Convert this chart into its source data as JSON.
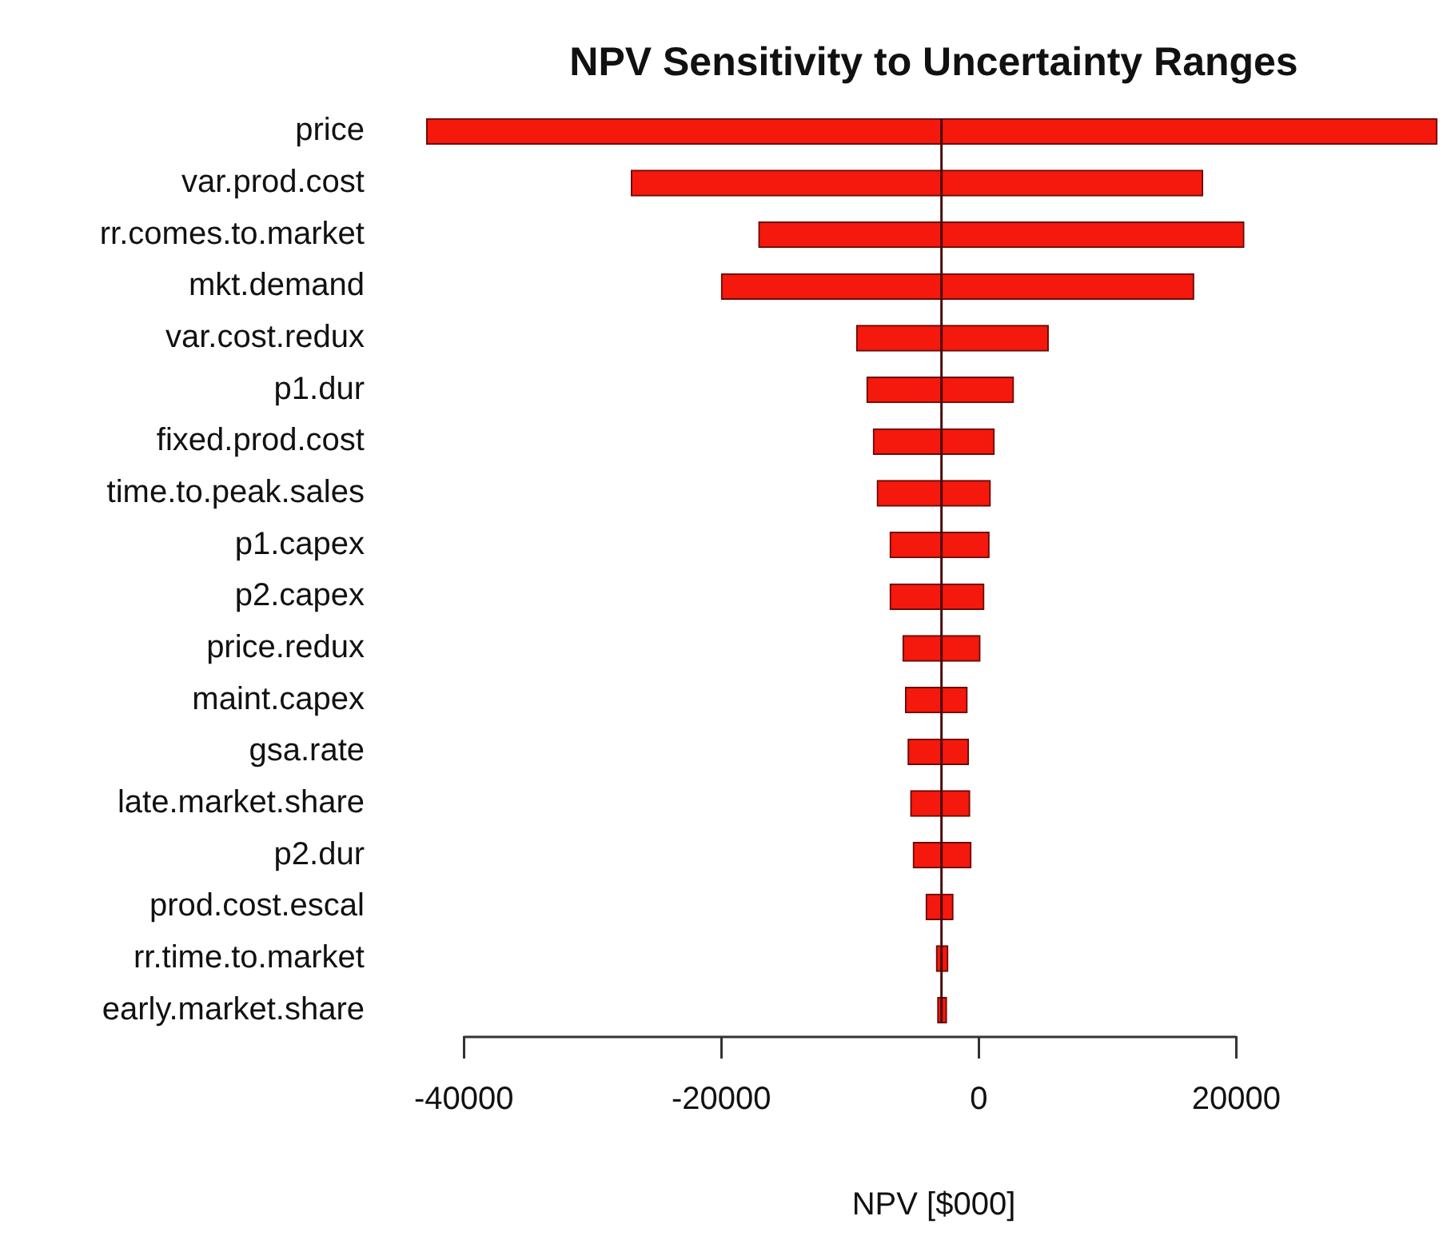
{
  "chart_data": {
    "type": "bar",
    "orientation": "horizontal",
    "title": "NPV Sensitivity to Uncertainty Ranges",
    "xlabel": "NPV [$000]",
    "categories": [
      "price",
      "var.prod.cost",
      "rr.comes.to.market",
      "mkt.demand",
      "var.cost.redux",
      "p1.dur",
      "fixed.prod.cost",
      "time.to.peak.sales",
      "p1.capex",
      "p2.capex",
      "price.redux",
      "maint.capex",
      "gsa.rate",
      "late.market.share",
      "p2.dur",
      "prod.cost.escal",
      "rr.time.to.market",
      "early.market.share"
    ],
    "base": [
      -42900,
      -27000,
      -17100,
      -20000,
      -9500,
      -8700,
      -8200,
      -7900,
      -6900,
      -6900,
      -5900,
      -5700,
      -5500,
      -5300,
      -5100,
      -4100,
      -3300,
      -3200
    ],
    "values": [
      78500,
      44400,
      37700,
      36700,
      14900,
      11400,
      9400,
      8800,
      7700,
      7300,
      6000,
      4800,
      4700,
      4600,
      4500,
      2100,
      900,
      700
    ],
    "color": "#f5180c",
    "xlim": [
      -43000,
      36000
    ],
    "xticks": [
      -40000,
      -20000,
      0,
      20000
    ],
    "ref_lines": [
      {
        "axis": "x",
        "value": -2900,
        "color": "#4a0a0a"
      }
    ],
    "grid": false,
    "legend": false
  }
}
